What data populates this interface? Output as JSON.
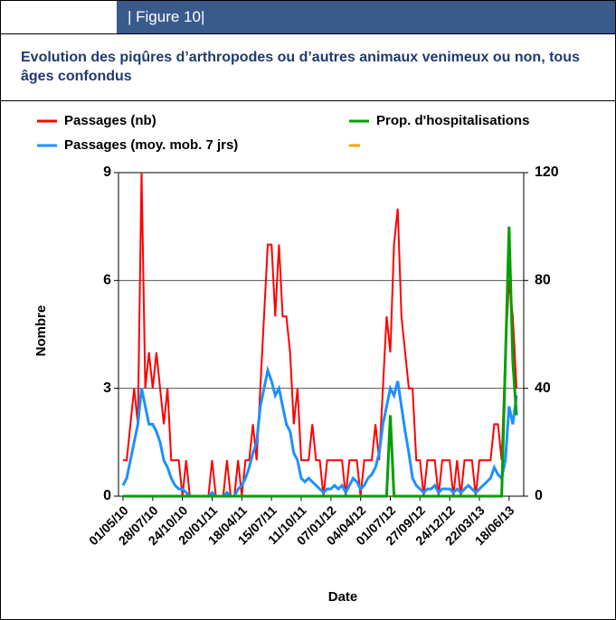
{
  "figure_label": "| Figure 10|",
  "chart_data": {
    "type": "line",
    "title": "Evolution des piqûres d’arthropodes ou d’autres animaux venimeux ou non, tous âges confondus",
    "x_label": "Date",
    "y_label": "Nombre",
    "categories": [
      "01/05/10",
      null,
      null,
      null,
      null,
      null,
      null,
      null,
      "28/07/10",
      null,
      null,
      null,
      null,
      null,
      null,
      null,
      "24/10/10",
      null,
      null,
      null,
      null,
      null,
      null,
      null,
      "20/01/11",
      null,
      null,
      null,
      null,
      null,
      null,
      null,
      "18/04/11",
      null,
      null,
      null,
      null,
      null,
      null,
      null,
      "15/07/11",
      null,
      null,
      null,
      null,
      null,
      null,
      null,
      "11/10/11",
      null,
      null,
      null,
      null,
      null,
      null,
      null,
      "07/01/12",
      null,
      null,
      null,
      null,
      null,
      null,
      null,
      "04/04/12",
      null,
      null,
      null,
      null,
      null,
      null,
      null,
      "01/07/12",
      null,
      null,
      null,
      null,
      null,
      null,
      null,
      "27/09/12",
      null,
      null,
      null,
      null,
      null,
      null,
      null,
      "24/12/12",
      null,
      null,
      null,
      null,
      null,
      null,
      null,
      "22/03/13",
      null,
      null,
      null,
      null,
      null,
      null,
      null,
      "18/06/13",
      null,
      null
    ],
    "series": [
      {
        "name": "Passages (nb)",
        "color": "#ff0000",
        "width": 2,
        "values": [
          1,
          1,
          2,
          3,
          2,
          9,
          3,
          4,
          3,
          4,
          3,
          2,
          3,
          1,
          1,
          1,
          0,
          1,
          0,
          0,
          0,
          0,
          0,
          0,
          1,
          0,
          0,
          0,
          1,
          0,
          0,
          1,
          0,
          1,
          1,
          2,
          1,
          3,
          5,
          7,
          7,
          5,
          7,
          5,
          5,
          4,
          2,
          3,
          1,
          1,
          1,
          2,
          1,
          1,
          0,
          1,
          1,
          1,
          1,
          1,
          0,
          1,
          1,
          1,
          0,
          1,
          1,
          1,
          2,
          1,
          3,
          5,
          4,
          7,
          8,
          5,
          4,
          3,
          3,
          1,
          1,
          0,
          1,
          1,
          1,
          0,
          1,
          1,
          1,
          0,
          1,
          0,
          1,
          1,
          1,
          0,
          1,
          1,
          1,
          1,
          2,
          2,
          1,
          4,
          6,
          5,
          3
        ]
      },
      {
        "name": "Passages (moy. mob. 7 jrs)",
        "color": "#1e90ff",
        "width": 3,
        "values": [
          0.3,
          0.5,
          1,
          1.5,
          2,
          3,
          2.5,
          2,
          2,
          1.8,
          1.5,
          1,
          0.8,
          0.5,
          0.3,
          0.2,
          0.2,
          0.1,
          0,
          0,
          0,
          0,
          0,
          0,
          0.1,
          0,
          0,
          0,
          0.1,
          0,
          0,
          0.2,
          0.3,
          0.5,
          0.8,
          1.2,
          1.5,
          2.5,
          3,
          3.5,
          3.2,
          2.8,
          3,
          2.5,
          2,
          1.8,
          1.2,
          1,
          0.5,
          0.4,
          0.5,
          0.4,
          0.3,
          0.2,
          0.1,
          0.2,
          0.2,
          0.3,
          0.2,
          0.3,
          0.1,
          0.3,
          0.5,
          0.4,
          0.2,
          0.3,
          0.5,
          0.6,
          0.8,
          1.2,
          2,
          2.5,
          3,
          2.8,
          3.2,
          2.5,
          1.8,
          1.2,
          0.5,
          0.3,
          0.2,
          0.1,
          0.2,
          0.2,
          0.3,
          0.1,
          0.2,
          0.2,
          0.2,
          0.1,
          0.2,
          0.1,
          0.2,
          0.3,
          0.2,
          0.1,
          0.2,
          0.3,
          0.4,
          0.5,
          0.8,
          0.6,
          0.5,
          1,
          2.5,
          2,
          2.8
        ]
      },
      {
        "name": "Prop. d'hospitalisations",
        "color": "#00a000",
        "width": 3,
        "axis": "y2",
        "values": [
          0,
          0,
          0,
          0,
          0,
          0,
          0,
          0,
          0,
          0,
          0,
          0,
          0,
          0,
          0,
          0,
          0,
          0,
          0,
          0,
          0,
          0,
          0,
          0,
          0,
          0,
          0,
          0,
          0,
          0,
          0,
          0,
          0,
          0,
          0,
          0,
          0,
          0,
          0,
          0,
          0,
          0,
          0,
          0,
          0,
          0,
          0,
          0,
          0,
          0,
          0,
          0,
          0,
          0,
          0,
          0,
          0,
          0,
          0,
          0,
          0,
          0,
          0,
          0,
          0,
          0,
          0,
          0,
          0,
          0,
          0,
          0,
          30,
          0,
          0,
          0,
          0,
          0,
          0,
          0,
          0,
          0,
          0,
          0,
          0,
          0,
          0,
          0,
          0,
          0,
          0,
          0,
          0,
          0,
          0,
          0,
          0,
          0,
          0,
          0,
          0,
          0,
          0,
          50,
          100,
          50,
          30
        ]
      }
    ],
    "ylim": [
      0,
      9
    ],
    "yticks": [
      0,
      3,
      6,
      9
    ],
    "y2lim": [
      0,
      120
    ],
    "y2ticks": [
      0,
      40,
      80,
      120
    ],
    "grid": true
  }
}
